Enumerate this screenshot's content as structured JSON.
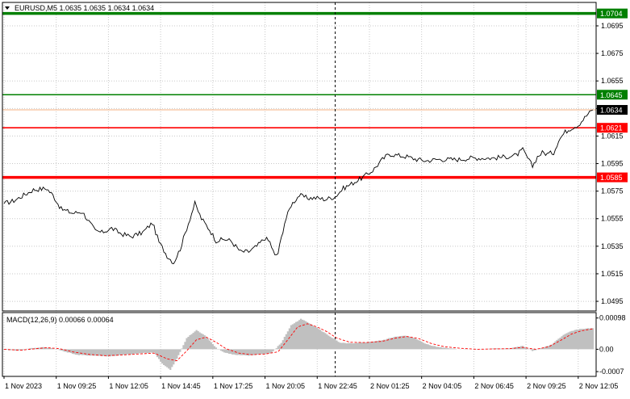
{
  "header": {
    "symbol_line": "EURUSD,M5  1.0635 1.0635 1.0634 1.0634",
    "macd_label": "MACD(12,26,9) 0.00066 0.00064"
  },
  "colors": {
    "background": "#ffffff",
    "frame": "#000000",
    "grid": "#c8c8c8",
    "price_line": "#000000",
    "green_level": "#008000",
    "red_level": "#ff0000",
    "current_price_line": "#f4b183",
    "current_price_tag": "#000000",
    "histogram": "#c0c0c0",
    "signal_line": "#ff0000"
  },
  "chart_data": [
    {
      "type": "line",
      "name": "price",
      "ylim": [
        1.0488,
        1.0712
      ],
      "y_ticks": [
        "1.0695",
        "1.0675",
        "1.0655",
        "1.0635",
        "1.0615",
        "1.0595",
        "1.0575",
        "1.0555",
        "1.0535",
        "1.0515",
        "1.0495"
      ],
      "x_ticks": [
        "1 Nov 2023",
        "1 Nov 09:25",
        "1 Nov 12:05",
        "1 Nov 14:45",
        "1 Nov 17:25",
        "1 Nov 20:05",
        "1 Nov 22:45",
        "2 Nov 01:25",
        "2 Nov 04:05",
        "2 Nov 06:45",
        "2 Nov 09:25",
        "2 Nov 12:05"
      ],
      "x_tick_index": [
        0,
        32,
        64,
        96,
        128,
        160,
        192,
        224,
        256,
        288,
        320,
        352
      ],
      "n_bars": 362,
      "vertical_marker_index": 203,
      "levels": [
        {
          "value": 1.0704,
          "label": "1.0704",
          "color": "green",
          "thick": true
        },
        {
          "value": 1.0645,
          "label": "1.0645",
          "color": "green",
          "thick": false
        },
        {
          "value": 1.0621,
          "label": "1.0621",
          "color": "red",
          "thick": false
        },
        {
          "value": 1.0585,
          "label": "1.0585",
          "color": "red",
          "thick": true
        }
      ],
      "current_price": {
        "value": 1.0634,
        "label": "1.0634"
      },
      "keypoints": [
        [
          0,
          1.0566
        ],
        [
          6,
          1.0568
        ],
        [
          12,
          1.0572
        ],
        [
          18,
          1.0576
        ],
        [
          26,
          1.0577
        ],
        [
          30,
          1.0572
        ],
        [
          35,
          1.0562
        ],
        [
          42,
          1.0559
        ],
        [
          48,
          1.056
        ],
        [
          52,
          1.0553
        ],
        [
          56,
          1.0546
        ],
        [
          60,
          1.0545
        ],
        [
          66,
          1.0548
        ],
        [
          72,
          1.0544
        ],
        [
          78,
          1.0542
        ],
        [
          85,
          1.0545
        ],
        [
          91,
          1.0552
        ],
        [
          95,
          1.0538
        ],
        [
          100,
          1.0528
        ],
        [
          104,
          1.0523
        ],
        [
          108,
          1.0533
        ],
        [
          112,
          1.0548
        ],
        [
          117,
          1.0566
        ],
        [
          121,
          1.0555
        ],
        [
          126,
          1.0547
        ],
        [
          130,
          1.0539
        ],
        [
          135,
          1.054
        ],
        [
          139,
          1.0539
        ],
        [
          145,
          1.0531
        ],
        [
          150,
          1.0531
        ],
        [
          155,
          1.0535
        ],
        [
          160,
          1.0541
        ],
        [
          163,
          1.0538
        ],
        [
          166,
          1.0528
        ],
        [
          168,
          1.053
        ],
        [
          172,
          1.0552
        ],
        [
          176,
          1.0565
        ],
        [
          181,
          1.0572
        ],
        [
          186,
          1.057
        ],
        [
          192,
          1.057
        ],
        [
          197,
          1.0569
        ],
        [
          203,
          1.0571
        ],
        [
          208,
          1.0577
        ],
        [
          214,
          1.0581
        ],
        [
          220,
          1.0585
        ],
        [
          226,
          1.059
        ],
        [
          232,
          1.0598
        ],
        [
          236,
          1.0602
        ],
        [
          241,
          1.0601
        ],
        [
          247,
          1.06
        ],
        [
          253,
          1.0598
        ],
        [
          259,
          1.0597
        ],
        [
          265,
          1.0598
        ],
        [
          272,
          1.0598
        ],
        [
          279,
          1.0598
        ],
        [
          286,
          1.0599
        ],
        [
          292,
          1.0599
        ],
        [
          300,
          1.0599
        ],
        [
          308,
          1.06
        ],
        [
          314,
          1.0601
        ],
        [
          318,
          1.0605
        ],
        [
          321,
          1.0599
        ],
        [
          324,
          1.0593
        ],
        [
          327,
          1.06
        ],
        [
          330,
          1.0603
        ],
        [
          333,
          1.0602
        ],
        [
          337,
          1.0603
        ],
        [
          340,
          1.0612
        ],
        [
          344,
          1.0618
        ],
        [
          348,
          1.0621
        ],
        [
          352,
          1.0623
        ],
        [
          355,
          1.0627
        ],
        [
          358,
          1.0631
        ],
        [
          361,
          1.0634
        ]
      ]
    },
    {
      "type": "bar",
      "name": "MACD(12,26,9)",
      "ylim": [
        -0.00085,
        0.00115
      ],
      "y_ticks": [
        {
          "value": 0.00098,
          "label": "0.00098"
        },
        {
          "value": 0.0,
          "label": "0.00"
        },
        {
          "value": -0.0007,
          "label": "-0.0007"
        }
      ],
      "macd_keypoints": [
        [
          0,
          -2e-05
        ],
        [
          10,
          -4e-05
        ],
        [
          16,
          3e-05
        ],
        [
          24,
          6e-05
        ],
        [
          30,
          3e-05
        ],
        [
          38,
          -8e-05
        ],
        [
          45,
          -0.00018
        ],
        [
          55,
          -0.0002
        ],
        [
          65,
          -0.00022
        ],
        [
          75,
          -0.00017
        ],
        [
          85,
          -0.00012
        ],
        [
          92,
          -0.0001
        ],
        [
          97,
          -0.00045
        ],
        [
          102,
          -0.00065
        ],
        [
          106,
          -0.0003
        ],
        [
          112,
          0.00035
        ],
        [
          118,
          0.0006
        ],
        [
          124,
          0.0004
        ],
        [
          130,
          5e-05
        ],
        [
          135,
          -0.0001
        ],
        [
          142,
          -0.00018
        ],
        [
          150,
          -0.0002
        ],
        [
          158,
          -0.00015
        ],
        [
          164,
          -0.00012
        ],
        [
          170,
          0.0002
        ],
        [
          176,
          0.00075
        ],
        [
          182,
          0.00095
        ],
        [
          188,
          0.0008
        ],
        [
          194,
          0.0006
        ],
        [
          200,
          0.0004
        ],
        [
          206,
          0.0002
        ],
        [
          214,
          0.00018
        ],
        [
          222,
          0.00022
        ],
        [
          232,
          0.00028
        ],
        [
          240,
          0.0004
        ],
        [
          246,
          0.00042
        ],
        [
          252,
          0.00035
        ],
        [
          258,
          0.00018
        ],
        [
          265,
          8e-05
        ],
        [
          272,
          4e-05
        ],
        [
          280,
          0.0
        ],
        [
          290,
          0.0
        ],
        [
          300,
          2e-05
        ],
        [
          310,
          3e-05
        ],
        [
          318,
          0.0001
        ],
        [
          324,
          -5e-05
        ],
        [
          330,
          4e-05
        ],
        [
          336,
          0.00015
        ],
        [
          342,
          0.00042
        ],
        [
          348,
          0.00058
        ],
        [
          354,
          0.00064
        ],
        [
          361,
          0.00066
        ]
      ],
      "signal_keypoints": [
        [
          0,
          0.0
        ],
        [
          10,
          -3e-05
        ],
        [
          18,
          1e-05
        ],
        [
          26,
          5e-05
        ],
        [
          34,
          2e-05
        ],
        [
          42,
          -8e-05
        ],
        [
          52,
          -0.00016
        ],
        [
          62,
          -0.0002
        ],
        [
          72,
          -0.00018
        ],
        [
          82,
          -0.00015
        ],
        [
          92,
          -0.00012
        ],
        [
          100,
          -0.0003
        ],
        [
          106,
          -0.00036
        ],
        [
          112,
          -5e-05
        ],
        [
          118,
          0.0003
        ],
        [
          124,
          0.00038
        ],
        [
          130,
          0.00022
        ],
        [
          136,
          2e-05
        ],
        [
          144,
          -0.00012
        ],
        [
          152,
          -0.00017
        ],
        [
          160,
          -0.00015
        ],
        [
          168,
          -8e-05
        ],
        [
          174,
          0.0003
        ],
        [
          180,
          0.0007
        ],
        [
          186,
          0.0008
        ],
        [
          192,
          0.0007
        ],
        [
          198,
          0.00055
        ],
        [
          204,
          0.00035
        ],
        [
          212,
          0.00022
        ],
        [
          222,
          0.00021
        ],
        [
          232,
          0.00025
        ],
        [
          240,
          0.00035
        ],
        [
          247,
          0.0004
        ],
        [
          254,
          0.00034
        ],
        [
          262,
          0.00018
        ],
        [
          270,
          8e-05
        ],
        [
          280,
          3e-05
        ],
        [
          290,
          0.0
        ],
        [
          300,
          1e-05
        ],
        [
          310,
          2e-05
        ],
        [
          318,
          6e-05
        ],
        [
          326,
          0.0
        ],
        [
          334,
          8e-05
        ],
        [
          342,
          0.0003
        ],
        [
          348,
          0.00048
        ],
        [
          354,
          0.00058
        ],
        [
          361,
          0.00064
        ]
      ]
    }
  ]
}
